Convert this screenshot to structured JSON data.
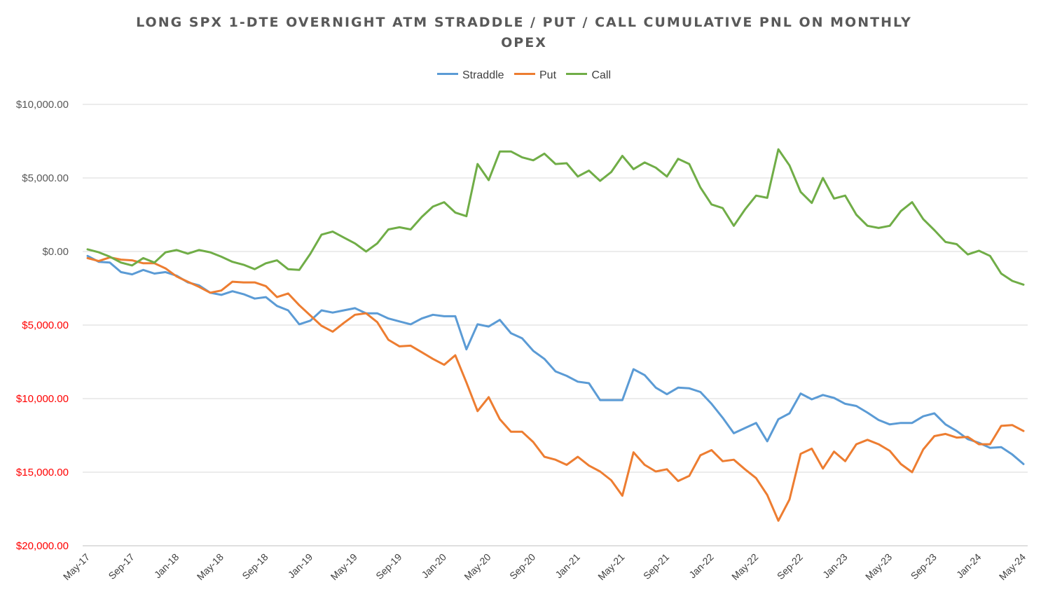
{
  "chart_data": {
    "type": "line",
    "title_lines": [
      "LONG SPX 1-DTE OVERNIGHT ATM STRADDLE / PUT / CALL CUMULATIVE PNL ON MONTHLY",
      "OPEX"
    ],
    "xlabel": "",
    "ylabel": "",
    "ylim": [
      -20000,
      10000
    ],
    "yticks": [
      {
        "value": 10000,
        "label": "$10,000.00",
        "color": "#595959"
      },
      {
        "value": 5000,
        "label": "$5,000.00",
        "color": "#595959"
      },
      {
        "value": 0,
        "label": "$0.00",
        "color": "#595959"
      },
      {
        "value": -5000,
        "label": "$5,000.00",
        "color": "#ff0000"
      },
      {
        "value": -10000,
        "label": "$10,000.00",
        "color": "#ff0000"
      },
      {
        "value": -15000,
        "label": "$15,000.00",
        "color": "#ff0000"
      },
      {
        "value": -20000,
        "label": "$20,000.00",
        "color": "#ff0000"
      }
    ],
    "xtick_labels": [
      {
        "index": 0,
        "label": "May-17"
      },
      {
        "index": 4,
        "label": "Sep-17"
      },
      {
        "index": 8,
        "label": "Jan-18"
      },
      {
        "index": 12,
        "label": "May-18"
      },
      {
        "index": 16,
        "label": "Sep-18"
      },
      {
        "index": 20,
        "label": "Jan-19"
      },
      {
        "index": 24,
        "label": "May-19"
      },
      {
        "index": 28,
        "label": "Sep-19"
      },
      {
        "index": 32,
        "label": "Jan-20"
      },
      {
        "index": 36,
        "label": "May-20"
      },
      {
        "index": 40,
        "label": "Sep-20"
      },
      {
        "index": 44,
        "label": "Jan-21"
      },
      {
        "index": 48,
        "label": "May-21"
      },
      {
        "index": 52,
        "label": "Sep-21"
      },
      {
        "index": 56,
        "label": "Jan-22"
      },
      {
        "index": 60,
        "label": "May-22"
      },
      {
        "index": 64,
        "label": "Sep-22"
      },
      {
        "index": 68,
        "label": "Jan-23"
      },
      {
        "index": 72,
        "label": "May-23"
      },
      {
        "index": 76,
        "label": "Sep-23"
      },
      {
        "index": 80,
        "label": "Jan-24"
      },
      {
        "index": 84,
        "label": "May-24"
      }
    ],
    "series": [
      {
        "name": "Straddle",
        "color": "#5b9bd5",
        "values": [
          -300,
          -700,
          -750,
          -1400,
          -1550,
          -1250,
          -1500,
          -1400,
          -1650,
          -2100,
          -2300,
          -2800,
          -2950,
          -2700,
          -2900,
          -3200,
          -3100,
          -3700,
          -4000,
          -4950,
          -4700,
          -4000,
          -4150,
          -4000,
          -3850,
          -4200,
          -4200,
          -4550,
          -4750,
          -4950,
          -4550,
          -4300,
          -4400,
          -4400,
          -6650,
          -4950,
          -5100,
          -4650,
          -5550,
          -5900,
          -6750,
          -7300,
          -8150,
          -8450,
          -8850,
          -8950,
          -10100,
          -10100,
          -10100,
          -8000,
          -8400,
          -9250,
          -9700,
          -9250,
          -9300,
          -9550,
          -10350,
          -11300,
          -12350,
          -12000,
          -11650,
          -12900,
          -11400,
          -11000,
          -9650,
          -10050,
          -9750,
          -9950,
          -10350,
          -10500,
          -10950,
          -11450,
          -11750,
          -11650,
          -11650,
          -11200,
          -11000,
          -11750,
          -12200,
          -12750,
          -13000,
          -13350,
          -13300,
          -13800,
          -14450
        ]
      },
      {
        "name": "Put",
        "color": "#ed7d31",
        "values": [
          -450,
          -650,
          -400,
          -550,
          -600,
          -800,
          -800,
          -1150,
          -1700,
          -2050,
          -2400,
          -2800,
          -2650,
          -2050,
          -2100,
          -2100,
          -2350,
          -3100,
          -2850,
          -3650,
          -4350,
          -5050,
          -5450,
          -4850,
          -4300,
          -4200,
          -4800,
          -6000,
          -6450,
          -6400,
          -6850,
          -7300,
          -7700,
          -7050,
          -8900,
          -10850,
          -9900,
          -11400,
          -12250,
          -12250,
          -12950,
          -13950,
          -14150,
          -14500,
          -13950,
          -14550,
          -14950,
          -15550,
          -16600,
          -13650,
          -14500,
          -14950,
          -14800,
          -15600,
          -15250,
          -13850,
          -13500,
          -14250,
          -14150,
          -14800,
          -15400,
          -16550,
          -18300,
          -16850,
          -13750,
          -13400,
          -14750,
          -13600,
          -14250,
          -13100,
          -12800,
          -13100,
          -13550,
          -14450,
          -15000,
          -13450,
          -12550,
          -12400,
          -12650,
          -12600,
          -13100,
          -13100,
          -11850,
          -11800,
          -12200
        ]
      },
      {
        "name": "Call",
        "color": "#70ad47",
        "values": [
          150,
          -50,
          -350,
          -750,
          -950,
          -450,
          -750,
          -50,
          100,
          -150,
          100,
          -50,
          -350,
          -700,
          -900,
          -1200,
          -800,
          -600,
          -1200,
          -1250,
          -150,
          1150,
          1350,
          950,
          550,
          0,
          550,
          1500,
          1650,
          1500,
          2350,
          3050,
          3350,
          2650,
          2400,
          5950,
          4850,
          6800,
          6800,
          6400,
          6200,
          6650,
          5950,
          6000,
          5100,
          5500,
          4800,
          5400,
          6500,
          5600,
          6050,
          5700,
          5100,
          6300,
          5950,
          4350,
          3200,
          2950,
          1750,
          2850,
          3800,
          3650,
          6950,
          5850,
          4050,
          3300,
          5000,
          3600,
          3800,
          2500,
          1750,
          1600,
          1750,
          2750,
          3350,
          2200,
          1450,
          650,
          500,
          -200,
          50,
          -300,
          -1500,
          -2000,
          -2250
        ]
      }
    ]
  }
}
